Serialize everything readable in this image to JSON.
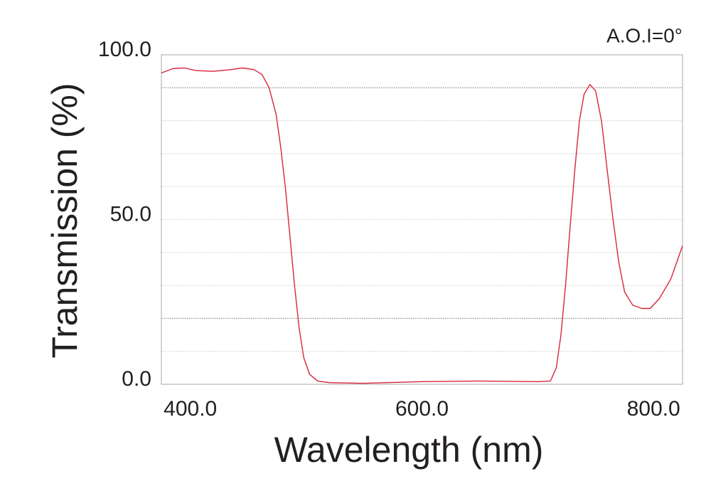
{
  "chart_data": {
    "type": "line",
    "annotation": "A.O.I=0°",
    "x_label": "Wavelength (nm)",
    "y_label": "Transmission (%)",
    "xlim": [
      375,
      825
    ],
    "xticks": [
      {
        "value": 400,
        "label": "400.0"
      },
      {
        "value": 600,
        "label": "600.0"
      },
      {
        "value": 800,
        "label": "800.0"
      }
    ],
    "ylim": [
      0,
      100
    ],
    "yticks": [
      {
        "value": 0,
        "label": "0.0"
      },
      {
        "value": 50,
        "label": "50.0"
      },
      {
        "value": 100,
        "label": "100.0"
      }
    ],
    "ygrid": [
      10,
      20,
      30,
      40,
      50,
      60,
      70,
      80,
      90
    ],
    "ygrid_dark": [
      20,
      90
    ],
    "series": [
      {
        "color": "#d9243a",
        "x": [
          375,
          385,
          395,
          405,
          420,
          435,
          445,
          455,
          462,
          468,
          474,
          478,
          482,
          486,
          490,
          494,
          498,
          503,
          510,
          520,
          550,
          600,
          650,
          700,
          711,
          716,
          720,
          724,
          728,
          732,
          736,
          740,
          745,
          750,
          755,
          760,
          765,
          770,
          775,
          782,
          790,
          797,
          805,
          815,
          825
        ],
        "values": [
          94.5,
          95.8,
          96,
          95.2,
          95,
          95.5,
          96,
          95.5,
          94,
          90,
          82,
          72,
          60,
          45,
          30,
          17,
          8,
          3,
          1,
          0.5,
          0.3,
          0.8,
          1,
          0.8,
          1,
          5,
          15,
          30,
          48,
          65,
          80,
          88,
          91,
          89,
          80,
          65,
          50,
          37,
          28,
          24,
          23,
          23,
          26,
          32,
          42
        ]
      }
    ]
  }
}
